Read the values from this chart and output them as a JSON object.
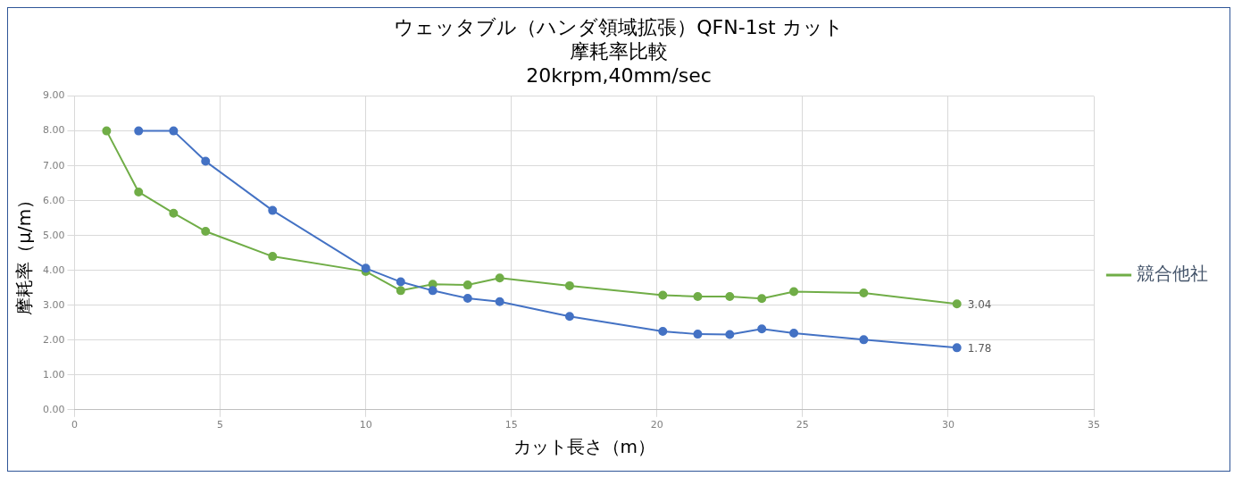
{
  "chart_data": {
    "type": "line",
    "title": "ウェッタブル（ハンダ領域拡張）QFN-1st カット",
    "subtitle": "摩耗率比較",
    "annotations": [
      "20krpm,40mm/sec"
    ],
    "xlabel": "カット長さ（m）",
    "ylabel": "摩耗率（μ/m）",
    "xlim": [
      0,
      35
    ],
    "xticks": [
      0,
      5,
      10,
      15,
      20,
      25,
      30,
      35
    ],
    "ylim": [
      0,
      9
    ],
    "yticks": [
      {
        "value": 0,
        "label": "0.00"
      },
      {
        "value": 1,
        "label": "1.00"
      },
      {
        "value": 2,
        "label": "2.00"
      },
      {
        "value": 3,
        "label": "3.00"
      },
      {
        "value": 4,
        "label": "4.00"
      },
      {
        "value": 5,
        "label": "5.00"
      },
      {
        "value": 6,
        "label": "6.00"
      },
      {
        "value": 7,
        "label": "7.00"
      },
      {
        "value": 8,
        "label": "8.00"
      },
      {
        "value": 9,
        "label": "9.00"
      }
    ],
    "grid": true,
    "legend": "right",
    "marker": "circle",
    "line_style": "solid",
    "series": [
      {
        "name": "競合他社",
        "color": "#70ad47",
        "x": [
          1.1,
          2.2,
          3.4,
          4.5,
          6.8,
          10.0,
          11.2,
          12.3,
          13.5,
          14.6,
          17.0,
          20.2,
          21.4,
          22.5,
          23.6,
          24.7,
          27.1,
          30.3
        ],
        "values": [
          8.0,
          6.25,
          5.64,
          5.12,
          4.4,
          3.97,
          3.42,
          3.6,
          3.58,
          3.78,
          3.56,
          3.29,
          3.25,
          3.25,
          3.19,
          3.39,
          3.35,
          3.04
        ],
        "value_labels": [
          null,
          null,
          null,
          null,
          null,
          null,
          null,
          null,
          null,
          null,
          null,
          null,
          null,
          null,
          null,
          null,
          null,
          "3.04"
        ]
      },
      {
        "color": "#4472c4",
        "x": [
          2.2,
          3.4,
          4.5,
          6.8,
          10.0,
          11.2,
          12.3,
          13.5,
          14.6,
          17.0,
          20.2,
          21.4,
          22.5,
          23.6,
          24.7,
          27.1,
          30.3
        ],
        "values": [
          8.0,
          8.0,
          7.13,
          5.72,
          4.06,
          3.67,
          3.42,
          3.2,
          3.1,
          2.68,
          2.25,
          2.17,
          2.16,
          2.32,
          2.2,
          2.01,
          1.78
        ],
        "value_labels": [
          null,
          null,
          null,
          null,
          null,
          null,
          null,
          null,
          null,
          null,
          null,
          null,
          null,
          null,
          null,
          null,
          "1.78"
        ]
      }
    ]
  }
}
